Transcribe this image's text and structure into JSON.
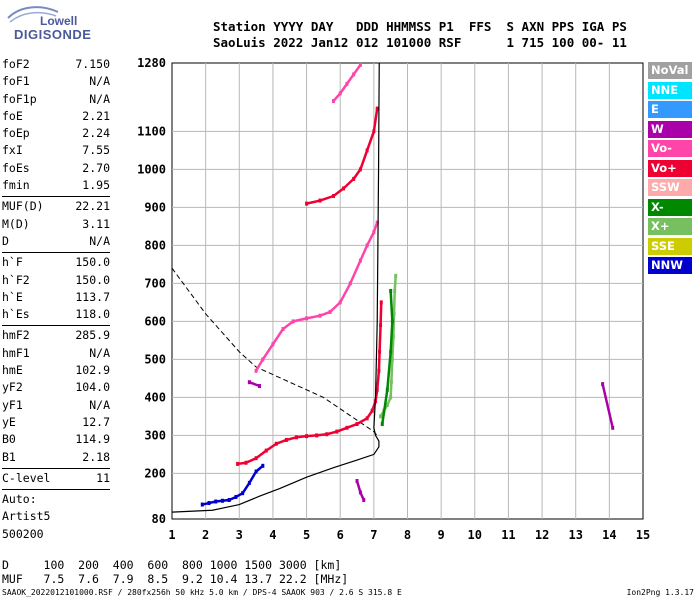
{
  "logo": {
    "line1": "Lowell",
    "line2": "DIGISONDE"
  },
  "header": {
    "line1": "Station YYYY DAY   DDD HHMMSS P1  FFS  S AXN PPS IGA PS",
    "line2": "SaoLuis 2022 Jan12 012 101000 RSF      1 715 100 00- 11"
  },
  "params": [
    {
      "label": "foF2",
      "value": "7.150"
    },
    {
      "label": "foF1",
      "value": "N/A"
    },
    {
      "label": "foF1p",
      "value": "N/A"
    },
    {
      "label": "foE",
      "value": "2.21"
    },
    {
      "label": "foEp",
      "value": "2.24"
    },
    {
      "label": "fxI",
      "value": "7.55"
    },
    {
      "label": "foEs",
      "value": "2.70"
    },
    {
      "label": "fmin",
      "value": "1.95"
    },
    {
      "sep": true
    },
    {
      "label": "MUF(D)",
      "value": "22.21"
    },
    {
      "label": "M(D)",
      "value": "3.11"
    },
    {
      "label": "D",
      "value": "N/A"
    },
    {
      "sep": true
    },
    {
      "label": "h`F",
      "value": "150.0"
    },
    {
      "label": "h`F2",
      "value": "150.0"
    },
    {
      "label": "h`E",
      "value": "113.7"
    },
    {
      "label": "h`Es",
      "value": "118.0"
    },
    {
      "sep": true
    },
    {
      "label": "hmF2",
      "value": "285.9"
    },
    {
      "label": "hmF1",
      "value": "N/A"
    },
    {
      "label": "hmE",
      "value": "102.9"
    },
    {
      "label": "yF2",
      "value": "104.0"
    },
    {
      "label": "yF1",
      "value": "N/A"
    },
    {
      "label": "yE",
      "value": "12.7"
    },
    {
      "label": "B0",
      "value": "114.9"
    },
    {
      "label": "B1",
      "value": "2.18"
    },
    {
      "sep": true
    },
    {
      "label": "C-level",
      "value": "11"
    },
    {
      "sep": true
    },
    {
      "label": "Auto:",
      "value": ""
    },
    {
      "label": "Artist5",
      "value": ""
    },
    {
      "label": "500200",
      "value": ""
    }
  ],
  "legend": [
    {
      "label": "NoVal",
      "color": "#a0a0a0"
    },
    {
      "label": "NNE",
      "color": "#00e5ff"
    },
    {
      "label": "E",
      "color": "#3399ff"
    },
    {
      "label": "W",
      "color": "#aa00aa"
    },
    {
      "label": "Vo-",
      "color": "#ff44aa"
    },
    {
      "label": "Vo+",
      "color": "#ee0033"
    },
    {
      "label": "SSW",
      "color": "#ffaaaa"
    },
    {
      "label": "X-",
      "color": "#008800"
    },
    {
      "label": "X+",
      "color": "#77c060"
    },
    {
      "label": "SSE",
      "color": "#cccc00"
    },
    {
      "label": "NNW",
      "color": "#0000cc"
    }
  ],
  "bottom": {
    "line1": "D     100  200  400  600  800 1000 1500 3000 [km]",
    "line2": "MUF   7.5  7.6  7.9  8.5  9.2 10.4 13.7 22.2 [MHz]"
  },
  "footer": {
    "left": "SAAOK_2022012101000.RSF / 280fx256h 50 kHz 5.0 km / DPS-4 SAAOK 903 / 2.6 S 315.8 E",
    "right": "Ion2Png 1.3.17"
  },
  "chart_data": {
    "type": "scatter",
    "xlim": [
      1,
      15
    ],
    "ylim": [
      80,
      1280
    ],
    "x_ticks": [
      "1",
      "2",
      "3",
      "4",
      "5",
      "6",
      "7",
      "8",
      "9",
      "10",
      "11",
      "12",
      "13",
      "14",
      "15"
    ],
    "y_ticks": [
      "80",
      "200",
      "300",
      "400",
      "500",
      "600",
      "700",
      "800",
      "900",
      "1000",
      "1100",
      "1280"
    ],
    "grid": true,
    "series": [
      {
        "color": "#ee0033",
        "points": [
          [
            2.95,
            225
          ],
          [
            3.2,
            228
          ],
          [
            3.5,
            240
          ],
          [
            3.8,
            260
          ],
          [
            4.1,
            278
          ],
          [
            4.4,
            288
          ],
          [
            4.7,
            295
          ],
          [
            5.0,
            298
          ],
          [
            5.3,
            300
          ],
          [
            5.6,
            303
          ],
          [
            5.9,
            310
          ],
          [
            6.2,
            320
          ],
          [
            6.5,
            330
          ],
          [
            6.8,
            345
          ],
          [
            6.95,
            365
          ],
          [
            7.05,
            390
          ],
          [
            7.1,
            420
          ],
          [
            7.15,
            470
          ],
          [
            7.17,
            520
          ],
          [
            7.2,
            590
          ],
          [
            7.22,
            650
          ]
        ]
      },
      {
        "color": "#77c060",
        "points": [
          [
            7.2,
            350
          ],
          [
            7.3,
            365
          ],
          [
            7.4,
            380
          ],
          [
            7.5,
            400
          ],
          [
            7.52,
            440
          ],
          [
            7.55,
            500
          ],
          [
            7.58,
            560
          ],
          [
            7.6,
            620
          ],
          [
            7.62,
            680
          ],
          [
            7.65,
            720
          ]
        ]
      },
      {
        "color": "#ff44aa",
        "points": [
          [
            3.5,
            470
          ],
          [
            3.7,
            500
          ],
          [
            4.0,
            540
          ],
          [
            4.3,
            580
          ],
          [
            4.6,
            600
          ],
          [
            5.0,
            608
          ],
          [
            5.4,
            615
          ],
          [
            5.7,
            625
          ],
          [
            6.0,
            650
          ],
          [
            6.3,
            700
          ],
          [
            6.6,
            760
          ],
          [
            6.8,
            800
          ],
          [
            7.0,
            835
          ],
          [
            7.1,
            860
          ]
        ]
      },
      {
        "color": "#ee0033",
        "points": [
          [
            5.0,
            910
          ],
          [
            5.4,
            918
          ],
          [
            5.8,
            930
          ],
          [
            6.1,
            950
          ],
          [
            6.4,
            975
          ],
          [
            6.6,
            1000
          ],
          [
            6.8,
            1050
          ],
          [
            7.0,
            1100
          ],
          [
            7.1,
            1160
          ]
        ]
      },
      {
        "color": "#ff44aa",
        "points": [
          [
            5.8,
            1180
          ],
          [
            6.0,
            1200
          ],
          [
            6.2,
            1225
          ],
          [
            6.4,
            1250
          ],
          [
            6.6,
            1275
          ]
        ]
      },
      {
        "color": "#0000cc",
        "points": [
          [
            1.9,
            118
          ],
          [
            2.1,
            122
          ],
          [
            2.3,
            126
          ],
          [
            2.5,
            128
          ],
          [
            2.7,
            130
          ],
          [
            2.9,
            138
          ],
          [
            3.1,
            148
          ],
          [
            3.3,
            175
          ],
          [
            3.5,
            205
          ],
          [
            3.7,
            220
          ]
        ]
      },
      {
        "color": "#008800",
        "points": [
          [
            7.25,
            330
          ],
          [
            7.4,
            420
          ],
          [
            7.5,
            520
          ],
          [
            7.55,
            600
          ],
          [
            7.5,
            680
          ]
        ]
      },
      {
        "color": "#aa00aa",
        "points": [
          [
            3.3,
            440
          ],
          [
            3.6,
            430
          ],
          [
            6.5,
            180
          ],
          [
            6.6,
            150
          ],
          [
            6.7,
            130
          ],
          [
            13.8,
            435
          ],
          [
            14.1,
            320
          ]
        ]
      }
    ],
    "profile_solid": [
      [
        1,
        98
      ],
      [
        2.2,
        103
      ],
      [
        3.0,
        118
      ],
      [
        3.6,
        140
      ],
      [
        4.2,
        160
      ],
      [
        5.0,
        190
      ],
      [
        5.8,
        215
      ],
      [
        6.5,
        235
      ],
      [
        7.0,
        250
      ],
      [
        7.15,
        270
      ],
      [
        7.15,
        285
      ],
      [
        7.05,
        300
      ],
      [
        7.0,
        320
      ],
      [
        7.05,
        400
      ],
      [
        7.1,
        600
      ],
      [
        7.12,
        800
      ],
      [
        7.14,
        1000
      ],
      [
        7.15,
        1150
      ],
      [
        7.16,
        1280
      ]
    ],
    "profile_dashed": [
      [
        1,
        740
      ],
      [
        1.5,
        680
      ],
      [
        2.0,
        620
      ],
      [
        2.5,
        570
      ],
      [
        3.0,
        520
      ],
      [
        3.5,
        480
      ],
      [
        4.0,
        460
      ],
      [
        4.5,
        440
      ],
      [
        5.0,
        420
      ],
      [
        5.5,
        400
      ],
      [
        6.0,
        370
      ],
      [
        6.5,
        340
      ],
      [
        7.0,
        310
      ],
      [
        7.1,
        300
      ]
    ]
  }
}
